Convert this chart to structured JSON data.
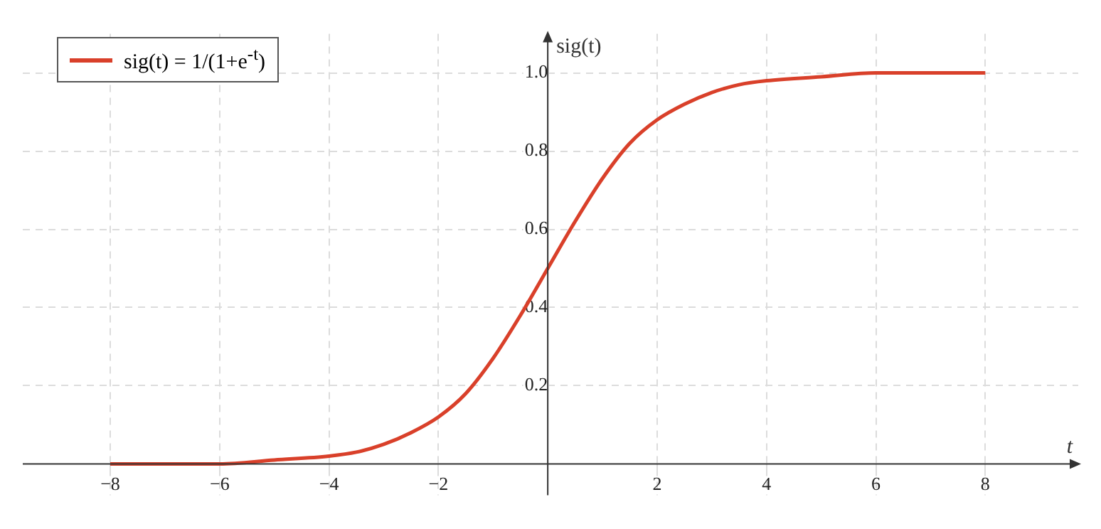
{
  "chart_data": {
    "type": "line",
    "xlabel": "t",
    "ylabel": "sig(t)",
    "x": [
      -8,
      -7,
      -6,
      -5,
      -4,
      -3.5,
      -3,
      -2.5,
      -2,
      -1.5,
      -1,
      -0.5,
      0,
      0.5,
      1,
      1.5,
      2,
      2.5,
      3,
      3.5,
      4,
      5,
      6,
      7,
      8
    ],
    "series": [
      {
        "name": "sig(t) = 1/(1+e$^{-t}$)",
        "color": "#d9402a",
        "values": [
          0,
          0,
          0,
          0.01,
          0.02,
          0.03,
          0.05,
          0.08,
          0.12,
          0.18,
          0.27,
          0.38,
          0.5,
          0.62,
          0.73,
          0.82,
          0.88,
          0.92,
          0.95,
          0.97,
          0.98,
          0.99,
          1,
          1,
          1
        ]
      }
    ],
    "xlim": [
      -9.6,
      9.7
    ],
    "ylim": [
      -0.08,
      1.1
    ],
    "xticks": [
      {
        "value": -8,
        "label": "−8"
      },
      {
        "value": -6,
        "label": "−6"
      },
      {
        "value": -4,
        "label": "−4"
      },
      {
        "value": -2,
        "label": "−2"
      },
      2,
      4,
      6,
      8
    ],
    "yticks": [
      0.2,
      0.4,
      0.6,
      0.8,
      {
        "value": 1,
        "label": "1.0"
      }
    ],
    "grid": true,
    "legend": "top left",
    "marker": "none",
    "line_style": "solid"
  }
}
